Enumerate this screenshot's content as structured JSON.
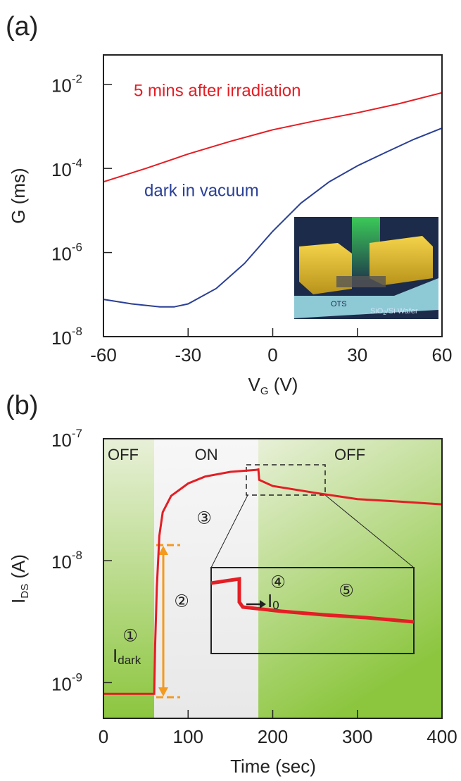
{
  "chart_data": [
    {
      "type": "line",
      "panel_label": "(a)",
      "log_y": true,
      "ylabel": "G (ms)",
      "xlabel": [
        "V",
        "G",
        " (V)"
      ],
      "xlim": [
        -60,
        60
      ],
      "xticks": [
        -60,
        -30,
        0,
        30,
        60
      ],
      "ylim": [
        1e-08,
        0.05
      ],
      "yticks": [
        {
          "value": 1e-08,
          "label": "10-8"
        },
        {
          "value": 1e-06,
          "label": "10-6"
        },
        {
          "value": 0.0001,
          "label": "10-4"
        },
        {
          "value": 0.01,
          "label": "10-2"
        }
      ],
      "series": [
        {
          "name": "5 mins after irradiation",
          "color": "#e31e24",
          "x": [
            -60,
            -45,
            -30,
            -15,
            0,
            15,
            30,
            45,
            60
          ],
          "values": [
            4.8e-05,
            0.0001,
            0.00022,
            0.00044,
            0.00083,
            0.00135,
            0.0021,
            0.0035,
            0.0063
          ]
        },
        {
          "name": "dark in vacuum",
          "color": "#2a3f95",
          "x": [
            -60,
            -50,
            -40,
            -35,
            -30,
            -20,
            -10,
            0,
            10,
            20,
            30,
            40,
            50,
            60
          ],
          "values": [
            7.7e-08,
            6e-08,
            5.1e-08,
            5.1e-08,
            6e-08,
            1.4e-07,
            5.5e-07,
            3.2e-06,
            1.5e-05,
            4.8e-05,
            0.000115,
            0.00024,
            0.00049,
            0.00091
          ]
        }
      ],
      "inset": {
        "label1": "OTS",
        "label2": [
          "SiO",
          "2",
          "/Si Wafer"
        ]
      }
    },
    {
      "type": "line",
      "panel_label": "(b)",
      "log_y": true,
      "ylabel": [
        "I",
        "DS",
        " (A)"
      ],
      "xlabel": "Time (sec)",
      "xlim": [
        0,
        400
      ],
      "xticks": [
        0,
        100,
        200,
        300,
        400
      ],
      "ylim": [
        5.1e-10,
        1e-07
      ],
      "yticks": [
        {
          "value": 1e-09,
          "label": "10-9"
        },
        {
          "value": 1e-08,
          "label": "10-8"
        },
        {
          "value": 1e-07,
          "label": "10-7"
        }
      ],
      "regions": [
        {
          "label": "OFF",
          "x": [
            0,
            60
          ],
          "color": "#8cc63f"
        },
        {
          "label": "ON",
          "x": [
            60,
            183
          ],
          "color": "#e8e8e8"
        },
        {
          "label": "OFF",
          "x": [
            183,
            400
          ],
          "color": "#8cc63f"
        }
      ],
      "series": [
        {
          "color": "#e31e24",
          "x": [
            0,
            30,
            60,
            61,
            63,
            66,
            70,
            80,
            100,
            120,
            150,
            180,
            183,
            184,
            200,
            250,
            300,
            350,
            400
          ],
          "values": [
            8.1e-10,
            8.1e-10,
            8.1e-10,
            2e-09,
            6e-09,
            1.6e-08,
            2.5e-08,
            3.4e-08,
            4.3e-08,
            4.9e-08,
            5.35e-08,
            5.55e-08,
            5.6e-08,
            4.6e-08,
            4.1e-08,
            3.6e-08,
            3.2e-08,
            3.05e-08,
            2.9e-08
          ]
        }
      ],
      "annotations": [
        "①",
        "②",
        "③",
        "④",
        "⑤"
      ],
      "i_dark": [
        "I",
        "dark"
      ],
      "i_zero": [
        "I",
        "0"
      ]
    }
  ]
}
